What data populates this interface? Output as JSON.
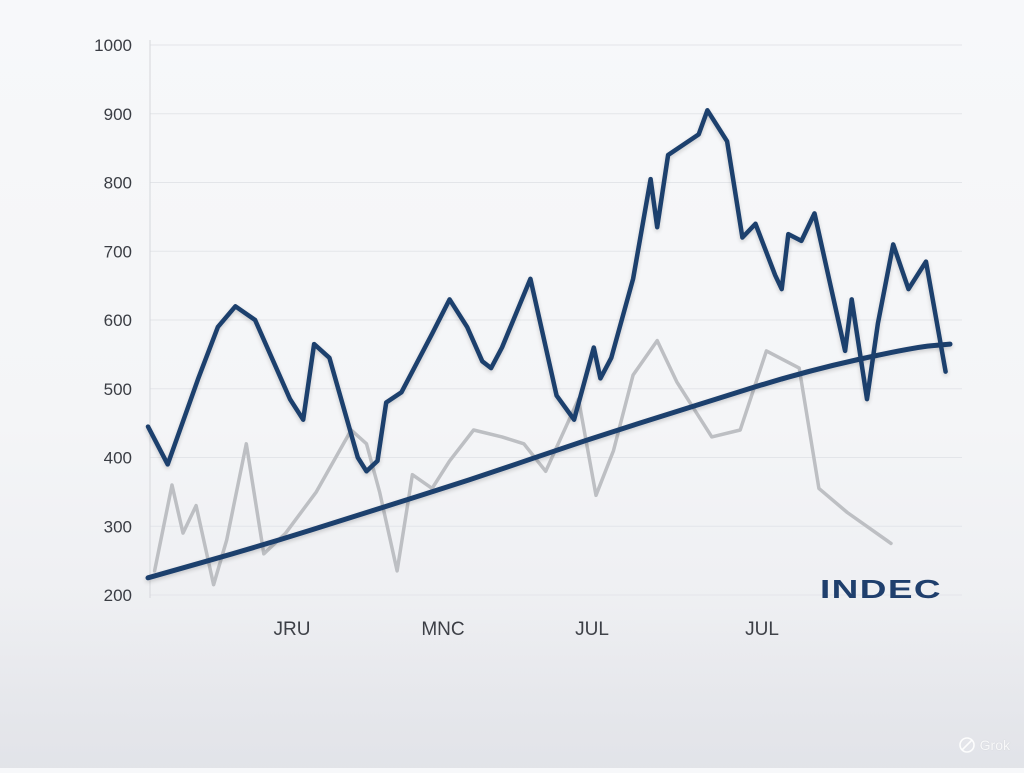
{
  "chart_data": {
    "type": "line",
    "categories": [
      "JRU",
      "MNC",
      "JUL",
      "JUL"
    ],
    "y_ticks": [
      "1000",
      "900",
      "800",
      "700",
      "600",
      "500",
      "400",
      "300",
      "200"
    ],
    "ylim": [
      200,
      1000
    ],
    "grid": true,
    "legend": "none",
    "title": "",
    "xlabel": "",
    "ylabel": "",
    "brand_label": "INDEC",
    "series": [
      {
        "color": "#1f3f6d",
        "style": "solid-thick",
        "points": [
          [
            0,
            445
          ],
          [
            0.09,
            390
          ],
          [
            0.23,
            515
          ],
          [
            0.32,
            590
          ],
          [
            0.4,
            620
          ],
          [
            0.49,
            600
          ],
          [
            0.65,
            485
          ],
          [
            0.71,
            455
          ],
          [
            0.76,
            565
          ],
          [
            0.83,
            545
          ],
          [
            0.96,
            400
          ],
          [
            1.0,
            380
          ],
          [
            1.05,
            395
          ],
          [
            1.09,
            480
          ],
          [
            1.16,
            495
          ],
          [
            1.3,
            580
          ],
          [
            1.38,
            630
          ],
          [
            1.46,
            590
          ],
          [
            1.53,
            540
          ],
          [
            1.57,
            530
          ],
          [
            1.62,
            560
          ],
          [
            1.75,
            660
          ],
          [
            1.87,
            490
          ],
          [
            1.95,
            455
          ],
          [
            2.04,
            560
          ],
          [
            2.07,
            515
          ],
          [
            2.12,
            545
          ],
          [
            2.22,
            660
          ],
          [
            2.3,
            805
          ],
          [
            2.33,
            735
          ],
          [
            2.38,
            840
          ],
          [
            2.52,
            870
          ],
          [
            2.56,
            905
          ],
          [
            2.65,
            860
          ],
          [
            2.72,
            720
          ],
          [
            2.78,
            740
          ],
          [
            2.87,
            665
          ],
          [
            2.9,
            645
          ],
          [
            2.93,
            725
          ],
          [
            2.99,
            715
          ],
          [
            3.05,
            755
          ],
          [
            3.12,
            655
          ],
          [
            3.19,
            555
          ],
          [
            3.22,
            630
          ],
          [
            3.29,
            485
          ],
          [
            3.34,
            595
          ],
          [
            3.41,
            710
          ],
          [
            3.48,
            645
          ],
          [
            3.56,
            685
          ],
          [
            3.65,
            525
          ]
        ]
      },
      {
        "color": "#bdbfc3",
        "style": "solid-thin",
        "points": [
          [
            0.03,
            235
          ],
          [
            0.11,
            360
          ],
          [
            0.16,
            290
          ],
          [
            0.22,
            330
          ],
          [
            0.3,
            215
          ],
          [
            0.36,
            280
          ],
          [
            0.45,
            420
          ],
          [
            0.53,
            260
          ],
          [
            0.63,
            290
          ],
          [
            0.77,
            350
          ],
          [
            0.93,
            440
          ],
          [
            1.0,
            420
          ],
          [
            1.06,
            350
          ],
          [
            1.14,
            235
          ],
          [
            1.21,
            375
          ],
          [
            1.3,
            355
          ],
          [
            1.38,
            395
          ],
          [
            1.49,
            440
          ],
          [
            1.62,
            430
          ],
          [
            1.72,
            420
          ],
          [
            1.82,
            380
          ],
          [
            1.97,
            485
          ],
          [
            2.05,
            345
          ],
          [
            2.13,
            410
          ],
          [
            2.22,
            520
          ],
          [
            2.33,
            570
          ],
          [
            2.42,
            510
          ],
          [
            2.58,
            430
          ],
          [
            2.71,
            440
          ],
          [
            2.83,
            555
          ],
          [
            2.98,
            530
          ],
          [
            3.07,
            355
          ],
          [
            3.2,
            320
          ],
          [
            3.4,
            275
          ]
        ]
      },
      {
        "color": "#1f3f6d",
        "style": "trend",
        "points": [
          [
            0,
            225
          ],
          [
            0.5,
            270
          ],
          [
            1.0,
            320
          ],
          [
            1.5,
            370
          ],
          [
            2.0,
            425
          ],
          [
            2.5,
            475
          ],
          [
            3.0,
            525
          ],
          [
            3.5,
            560
          ],
          [
            3.67,
            565
          ]
        ]
      }
    ]
  }
}
